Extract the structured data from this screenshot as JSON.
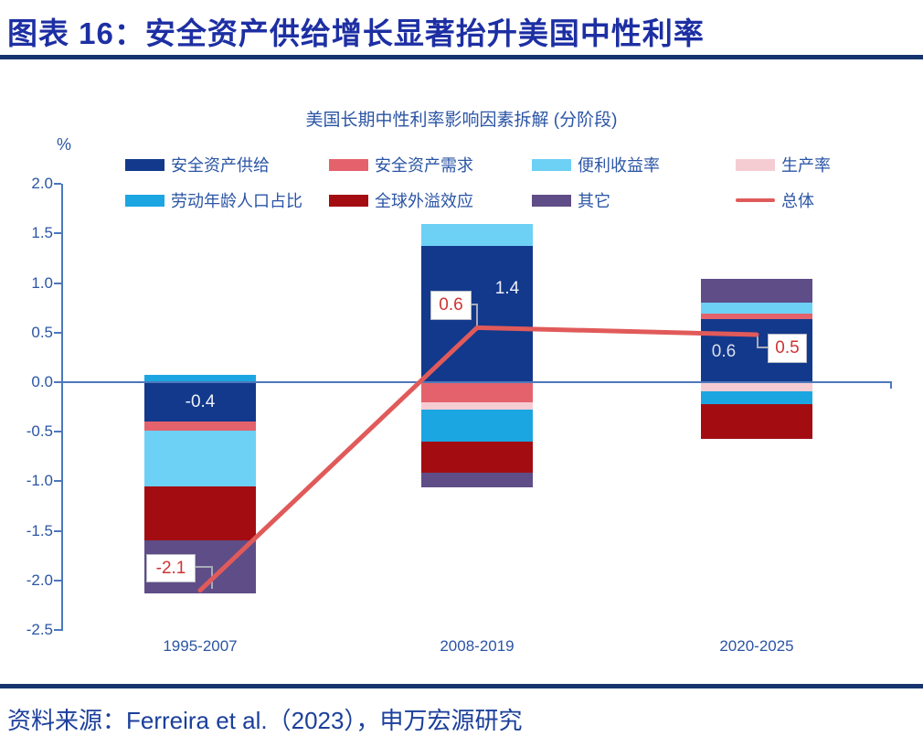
{
  "header": {
    "figure_title": "图表 16：安全资产供给增长显著抬升美国中性利率"
  },
  "footer": {
    "source_note": "资料来源：Ferreira et al.（2023），申万宏源研究"
  },
  "chart_data": {
    "type": "bar",
    "subtype": "stacked-bar-with-overlay-line",
    "title": "美国长期中性利率影响因素拆解 (分阶段)",
    "ylabel": "%",
    "ylim": [
      -2.5,
      2.0
    ],
    "yticks": [
      "2.0",
      "1.5",
      "1.0",
      "0.5",
      "0.0",
      "-0.5",
      "-1.0",
      "-1.5",
      "-2.0",
      "-2.5"
    ],
    "ytick_values": [
      2.0,
      1.5,
      1.0,
      0.5,
      0.0,
      -0.5,
      -1.0,
      -1.5,
      -2.0,
      -2.5
    ],
    "grid": false,
    "legend_position": "top",
    "categories": [
      "1995-2007",
      "2008-2019",
      "2020-2025"
    ],
    "series": [
      {
        "name": "安全资产供给",
        "slug": "safe-asset-supply",
        "color": "#12398C",
        "values": [
          -0.4,
          1.37,
          0.64
        ]
      },
      {
        "name": "安全资产需求",
        "slug": "safe-asset-demand",
        "color": "#E4626C",
        "values": [
          -0.09,
          -0.2,
          0.05
        ]
      },
      {
        "name": "便利收益率",
        "slug": "convenience-yield",
        "color": "#6DD0F5",
        "values": [
          -0.56,
          0.23,
          0.11
        ]
      },
      {
        "name": "生产率",
        "slug": "productivity",
        "color": "#F6CCD3",
        "values": [
          0,
          -0.08,
          -0.09
        ]
      },
      {
        "name": "劳动年龄人口占比",
        "slug": "working-age-population-share",
        "color": "#1BA6E2",
        "values": [
          0.07,
          -0.32,
          -0.13
        ]
      },
      {
        "name": "全球外溢效应",
        "slug": "global-spillover",
        "color": "#A30D12",
        "values": [
          -0.55,
          -0.31,
          -0.35
        ]
      },
      {
        "name": "其它",
        "slug": "other",
        "color": "#5F4D87",
        "values": [
          -0.53,
          -0.15,
          0.24
        ]
      }
    ],
    "line_series": {
      "name": "总体",
      "slug": "total",
      "color": "#E15A5A",
      "values": [
        -2.1,
        0.55,
        0.48
      ]
    },
    "bar_value_labels": [
      {
        "category_index": 0,
        "text": "-0.4",
        "color": "#F0F2F8",
        "dx": 0,
        "at_value": -0.2
      },
      {
        "category_index": 1,
        "text": "1.4",
        "color": "#F0F2F8",
        "dx": 33,
        "at_value": 0.94
      },
      {
        "category_index": 2,
        "text": "0.6",
        "color": "#D9DFEE",
        "dx": -36,
        "at_value": 0.3
      }
    ],
    "callouts": [
      {
        "category_index": 0,
        "text": "-2.1"
      },
      {
        "category_index": 1,
        "text": "0.6"
      },
      {
        "category_index": 2,
        "text": "0.5"
      }
    ]
  },
  "colors": {
    "figure_title": "#1D2FA3",
    "rule": "#16346F",
    "axis": "#4C78BC",
    "chart_text": "#2B55A5",
    "source_text": "#1B3F9B",
    "callout_text": "#CF3333",
    "callout_border": "#B6BAC6",
    "connector": "#A7ABB8",
    "background": "#FFFFFF"
  }
}
